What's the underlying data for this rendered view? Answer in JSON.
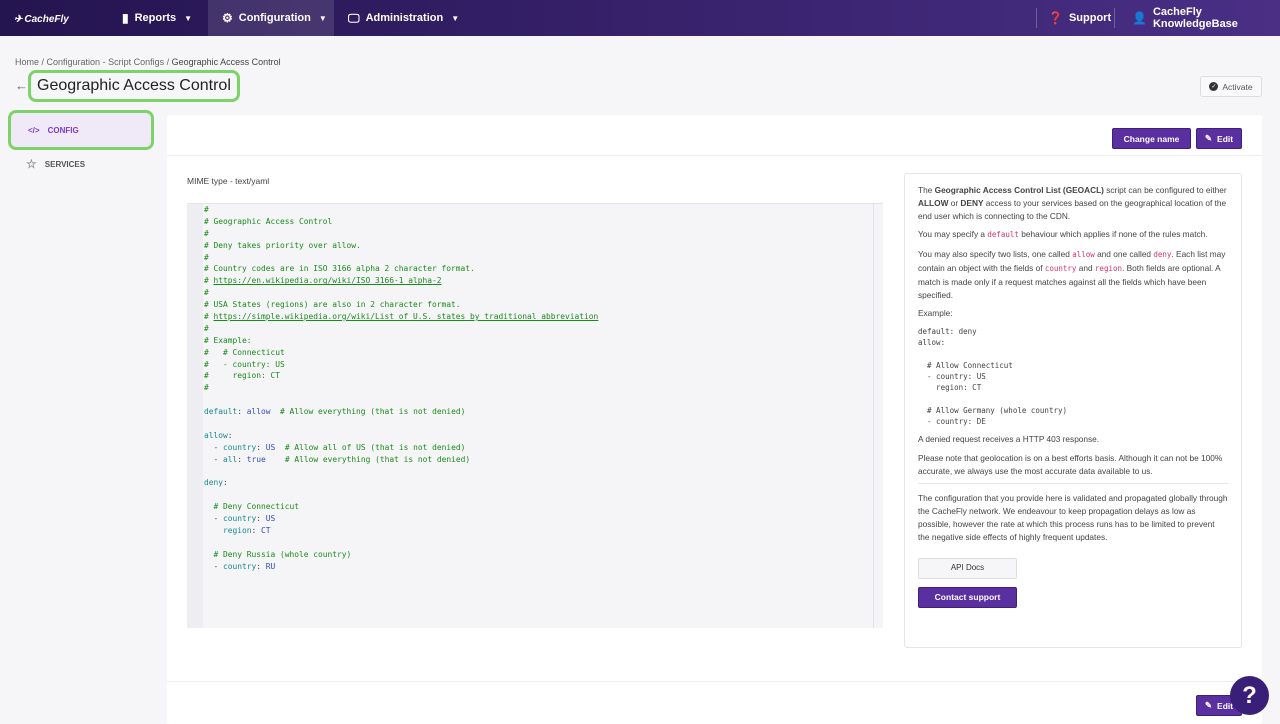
{
  "nav": {
    "logo": "CacheFly",
    "items": [
      {
        "label": "Reports",
        "icon": "bar-chart-icon"
      },
      {
        "label": "Configuration",
        "icon": "gear-icon"
      },
      {
        "label": "Administration",
        "icon": "monitor-icon"
      }
    ],
    "support": "Support",
    "account": "CacheFly KnowledgeBase"
  },
  "breadcrumb": {
    "home": "Home",
    "section": "Configuration - Script Configs",
    "current": "Geographic Access Control"
  },
  "page_title": "Geographic Access Control",
  "activate_label": "Activate",
  "sidebar": {
    "config": "CONFIG",
    "services": "SERVICES"
  },
  "toolbar": {
    "change_name": "Change name",
    "edit": "Edit"
  },
  "mime": "MIME type - text/yaml",
  "code_lines": [
    [
      [
        "c",
        "#"
      ]
    ],
    [
      [
        "c",
        "# Geographic Access Control"
      ]
    ],
    [
      [
        "c",
        "#"
      ]
    ],
    [
      [
        "c",
        "# Deny takes priority over allow."
      ]
    ],
    [
      [
        "c",
        "#"
      ]
    ],
    [
      [
        "c",
        "# Country codes are in ISO 3166 alpha 2 character format."
      ]
    ],
    [
      [
        "c",
        "# "
      ],
      [
        "u",
        "https://en.wikipedia.org/wiki/ISO_3166-1_alpha-2"
      ]
    ],
    [
      [
        "c",
        "#"
      ]
    ],
    [
      [
        "c",
        "# USA States (regions) are also in 2 character format."
      ]
    ],
    [
      [
        "c",
        "# "
      ],
      [
        "u",
        "https://simple.wikipedia.org/wiki/List_of_U.S._states_by_traditional_abbreviation"
      ]
    ],
    [
      [
        "c",
        "#"
      ]
    ],
    [
      [
        "c",
        "# Example:"
      ]
    ],
    [
      [
        "c",
        "#   # Connecticut"
      ]
    ],
    [
      [
        "c",
        "#   - country: US"
      ]
    ],
    [
      [
        "c",
        "#     region: CT"
      ]
    ],
    [
      [
        "c",
        "#"
      ]
    ],
    [],
    [
      [
        "k",
        "default"
      ],
      [
        "p",
        ": "
      ],
      [
        "v",
        "allow"
      ],
      [
        "c",
        "  # Allow everything (that is not denied)"
      ]
    ],
    [],
    [
      [
        "k",
        "allow"
      ],
      [
        "p",
        ":"
      ]
    ],
    [
      [
        "p",
        "  - "
      ],
      [
        "k",
        "country"
      ],
      [
        "p",
        ": "
      ],
      [
        "v",
        "US"
      ],
      [
        "c",
        "  # Allow all of US (that is not denied)"
      ]
    ],
    [
      [
        "p",
        "  - "
      ],
      [
        "k",
        "all"
      ],
      [
        "p",
        ": "
      ],
      [
        "v",
        "true"
      ],
      [
        "c",
        "    # Allow everything (that is not denied)"
      ]
    ],
    [],
    [
      [
        "k",
        "deny"
      ],
      [
        "p",
        ":"
      ]
    ],
    [],
    [
      [
        "c",
        "  # Deny Connecticut"
      ]
    ],
    [
      [
        "p",
        "  - "
      ],
      [
        "k",
        "country"
      ],
      [
        "p",
        ": "
      ],
      [
        "v",
        "US"
      ]
    ],
    [
      [
        "p",
        "    "
      ],
      [
        "k",
        "region"
      ],
      [
        "p",
        ": "
      ],
      [
        "v",
        "CT"
      ]
    ],
    [],
    [
      [
        "c",
        "  # Deny Russia (whole country)"
      ]
    ],
    [
      [
        "p",
        "  - "
      ],
      [
        "k",
        "country"
      ],
      [
        "p",
        ": "
      ],
      [
        "v",
        "RU"
      ]
    ]
  ],
  "info": {
    "p1_pre": "The ",
    "p1_b1": "Geographic Access Control List (GEOACL)",
    "p1_mid": " script can be configured to either ",
    "p1_b2": "ALLOW",
    "p1_or": " or ",
    "p1_b3": "DENY",
    "p1_post": " access to your services based on the geographical location of the end user which is connecting to the CDN.",
    "p2_pre": "You may specify a ",
    "p2_code": "default",
    "p2_post": " behaviour which applies if none of the rules match.",
    "p3_a": "You may also specify two lists, one called ",
    "p3_c1": "allow",
    "p3_b": " and one called ",
    "p3_c2": "deny",
    "p3_c": ". Each list may contain an object with the fields of ",
    "p3_c3": "country",
    "p3_d": " and ",
    "p3_c4": "region",
    "p3_e": ". Both fields are optional. A match is made only if a request matches against all the fields which have been specified.",
    "example_label": "Example:",
    "example_code": "default: deny\nallow:\n\n  # Allow Connecticut\n  - country: US\n    region: CT\n\n  # Allow Germany (whole country)\n  - country: DE",
    "p4": "A denied request receives a HTTP 403 response.",
    "p5": "Please note that geolocation is on a best efforts basis. Although it can not be 100% accurate, we always use the most accurate data available to us.",
    "p6": "The configuration that you provide here is validated and propagated globally through the CacheFly network. We endeavour to keep propagation delays as low as possible, however the rate at which this process runs has to be limited to prevent the negative side effects of highly frequent updates.",
    "api_docs": "API Docs",
    "contact": "Contact support"
  },
  "help_label": "?",
  "colors": {
    "brand": "#5a2fa0",
    "nav": "#2d1a5e",
    "highlight": "#7dd36a"
  }
}
